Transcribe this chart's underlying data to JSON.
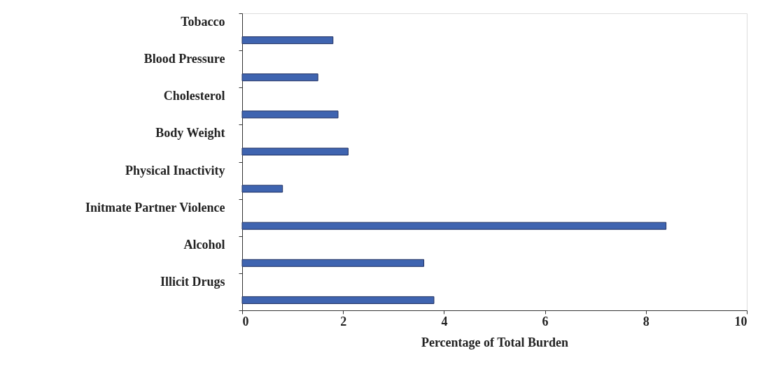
{
  "chart_data": {
    "type": "bar",
    "orientation": "horizontal",
    "xlabel": "Percentage of Total Burden",
    "categories": [
      "Tobacco",
      "Blood Pressure",
      "Cholesterol",
      "Body Weight",
      "Physical Inactivity",
      "Initmate Partner Violence",
      "Alcohol",
      "Illicit Drugs"
    ],
    "values": [
      1.8,
      1.5,
      1.9,
      2.1,
      0.8,
      8.4,
      3.6,
      3.8
    ],
    "color": "#3f64b0",
    "xlim": [
      0,
      10
    ],
    "xticks": [
      0,
      2,
      4,
      6,
      8,
      10
    ],
    "grid": false
  }
}
